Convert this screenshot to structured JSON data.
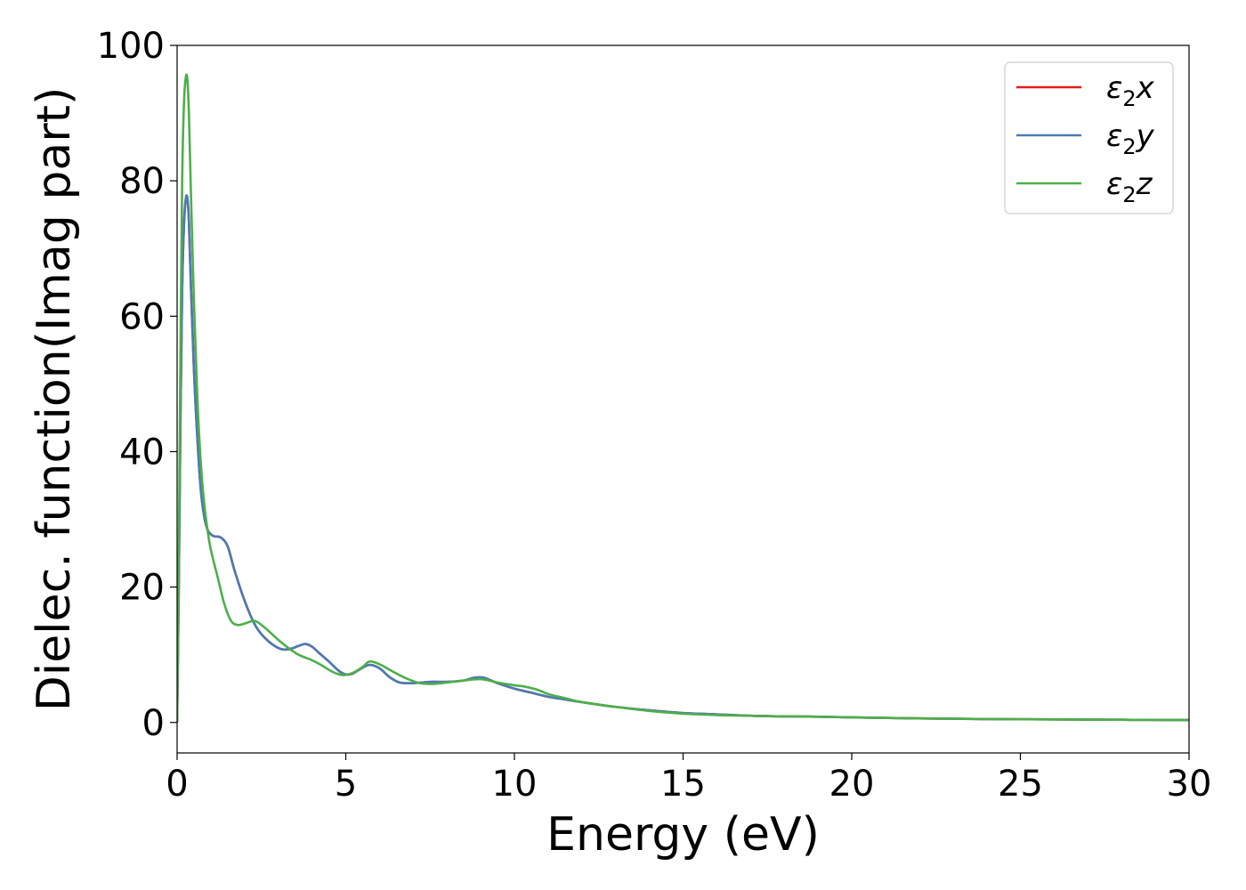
{
  "chart_data": {
    "type": "line",
    "xlabel": "Energy (eV)",
    "ylabel": "Dielec. function(Imag part)",
    "xlim": [
      0,
      30
    ],
    "ylim": [
      -4.5,
      100
    ],
    "xticks": [
      0,
      5,
      10,
      15,
      20,
      25,
      30
    ],
    "xtick_labels": [
      "0",
      "5",
      "10",
      "15",
      "20",
      "25",
      "30"
    ],
    "yticks": [
      0,
      20,
      40,
      60,
      80,
      100
    ],
    "ytick_labels": [
      "0",
      "20",
      "40",
      "60",
      "80",
      "100"
    ],
    "grid": false,
    "legend_position": "top-right",
    "series": [
      {
        "name": "ε₂x",
        "legend_base": "ε",
        "legend_sub": "2",
        "legend_var": "x",
        "color": "#e41a1c",
        "x": [
          0,
          0.05,
          0.1,
          0.15,
          0.2,
          0.25,
          0.3,
          0.35,
          0.4,
          0.5,
          0.6,
          0.7,
          0.8,
          0.9,
          1.0,
          1.1,
          1.3,
          1.5,
          1.7,
          2.0,
          2.3,
          2.6,
          3.0,
          3.3,
          3.6,
          3.8,
          4.0,
          4.2,
          4.5,
          4.8,
          5.0,
          5.2,
          5.4,
          5.7,
          6.0,
          6.3,
          6.6,
          7.0,
          7.5,
          8.0,
          8.5,
          8.8,
          9.1,
          9.5,
          10.0,
          10.5,
          11.0,
          11.5,
          12.0,
          13.0,
          14.0,
          15.0,
          16.0,
          17.0,
          18.0,
          19.0,
          20.0,
          22.0,
          24.0,
          26.0,
          28.0,
          30.0
        ],
        "y": [
          0,
          20,
          45,
          64,
          73,
          77,
          77.6,
          74,
          66,
          52,
          42,
          34.5,
          30.5,
          28.5,
          27.8,
          27.5,
          27.3,
          26,
          22.5,
          18,
          14.5,
          12.5,
          11,
          10.8,
          11.3,
          11.6,
          11.2,
          10.3,
          9.0,
          7.6,
          7.1,
          7.2,
          7.8,
          8.5,
          8.0,
          6.7,
          5.9,
          5.8,
          6.0,
          6.0,
          6.2,
          6.6,
          6.6,
          5.8,
          5.0,
          4.4,
          3.8,
          3.4,
          3.0,
          2.3,
          1.8,
          1.4,
          1.2,
          1.0,
          0.9,
          0.85,
          0.75,
          0.6,
          0.5,
          0.45,
          0.4,
          0.35
        ]
      },
      {
        "name": "ε₂y",
        "legend_base": "ε",
        "legend_sub": "2",
        "legend_var": "y",
        "color": "#4a7bb5",
        "x": [
          0,
          0.05,
          0.1,
          0.15,
          0.2,
          0.25,
          0.3,
          0.35,
          0.4,
          0.5,
          0.6,
          0.7,
          0.8,
          0.9,
          1.0,
          1.1,
          1.3,
          1.5,
          1.7,
          2.0,
          2.3,
          2.6,
          3.0,
          3.3,
          3.6,
          3.8,
          4.0,
          4.2,
          4.5,
          4.8,
          5.0,
          5.2,
          5.4,
          5.7,
          6.0,
          6.3,
          6.6,
          7.0,
          7.5,
          8.0,
          8.5,
          8.8,
          9.1,
          9.5,
          10.0,
          10.5,
          11.0,
          11.5,
          12.0,
          13.0,
          14.0,
          15.0,
          16.0,
          17.0,
          18.0,
          19.0,
          20.0,
          22.0,
          24.0,
          26.0,
          28.0,
          30.0
        ],
        "y": [
          0,
          20,
          45,
          64,
          73,
          77,
          77.6,
          74,
          66,
          52,
          42,
          34.5,
          30.5,
          28.5,
          27.8,
          27.5,
          27.3,
          26,
          22.5,
          18,
          14.5,
          12.5,
          11,
          10.8,
          11.3,
          11.6,
          11.2,
          10.3,
          9.0,
          7.6,
          7.1,
          7.2,
          7.8,
          8.5,
          8.0,
          6.7,
          5.9,
          5.8,
          6.0,
          6.0,
          6.2,
          6.6,
          6.6,
          5.8,
          5.0,
          4.4,
          3.8,
          3.4,
          3.0,
          2.3,
          1.8,
          1.4,
          1.2,
          1.0,
          0.9,
          0.85,
          0.75,
          0.6,
          0.5,
          0.45,
          0.4,
          0.35
        ]
      },
      {
        "name": "ε₂z",
        "legend_base": "ε",
        "legend_sub": "2",
        "legend_var": "z",
        "color": "#4daf4a",
        "x": [
          0,
          0.05,
          0.1,
          0.15,
          0.2,
          0.25,
          0.3,
          0.35,
          0.4,
          0.5,
          0.6,
          0.7,
          0.8,
          0.9,
          1.0,
          1.2,
          1.4,
          1.6,
          1.8,
          2.0,
          2.3,
          2.6,
          3.0,
          3.3,
          3.6,
          4.0,
          4.3,
          4.6,
          4.9,
          5.2,
          5.5,
          5.7,
          6.0,
          6.4,
          6.8,
          7.2,
          7.6,
          8.0,
          8.5,
          9.0,
          9.5,
          10.0,
          10.3,
          10.7,
          11.0,
          11.5,
          12.0,
          13.0,
          14.0,
          15.0,
          16.0,
          17.0,
          18.0,
          19.0,
          20.0,
          22.0,
          24.0,
          26.0,
          28.0,
          30.0
        ],
        "y": [
          0,
          25,
          55,
          80,
          91,
          95,
          95.2,
          90,
          80,
          62,
          48,
          38.5,
          32.5,
          28.5,
          25.5,
          21.5,
          17.5,
          15,
          14.4,
          14.6,
          15,
          14,
          12.2,
          11,
          10,
          9.2,
          8.4,
          7.5,
          7.0,
          7.3,
          8.2,
          9.0,
          8.6,
          7.5,
          6.5,
          5.8,
          5.7,
          5.9,
          6.2,
          6.4,
          5.9,
          5.5,
          5.3,
          4.8,
          4.2,
          3.6,
          3.0,
          2.3,
          1.7,
          1.3,
          1.1,
          1.0,
          0.9,
          0.85,
          0.75,
          0.6,
          0.5,
          0.45,
          0.4,
          0.35
        ]
      }
    ]
  }
}
